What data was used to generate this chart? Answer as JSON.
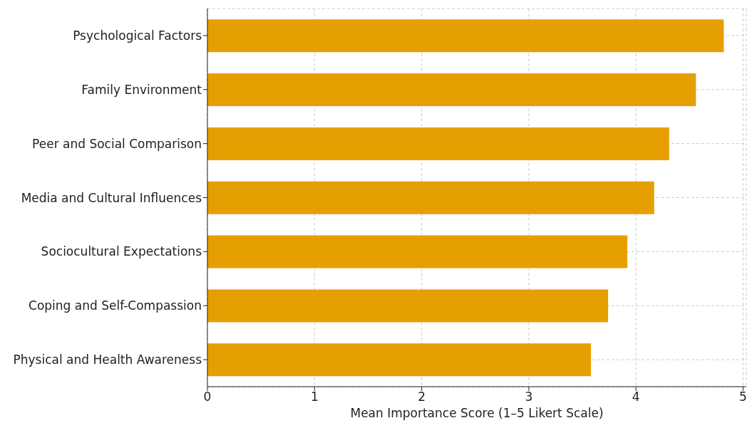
{
  "chart_data": {
    "type": "bar",
    "orientation": "horizontal",
    "xlabel": "Mean Importance Score (1–5 Likert Scale)",
    "categories": [
      "Psychological Factors",
      "Family Environment",
      "Peer and Social Comparison",
      "Media and Cultural Influences",
      "Sociocultural Expectations",
      "Coping and Self-Compassion",
      "Physical and Health Awareness"
    ],
    "values": [
      4.82,
      4.56,
      4.31,
      4.17,
      3.92,
      3.74,
      3.58
    ],
    "color": "#e69f00",
    "xlim": [
      0,
      5.03
    ],
    "xticks": [
      0,
      1,
      2,
      3,
      4,
      5
    ],
    "grid": true
  }
}
